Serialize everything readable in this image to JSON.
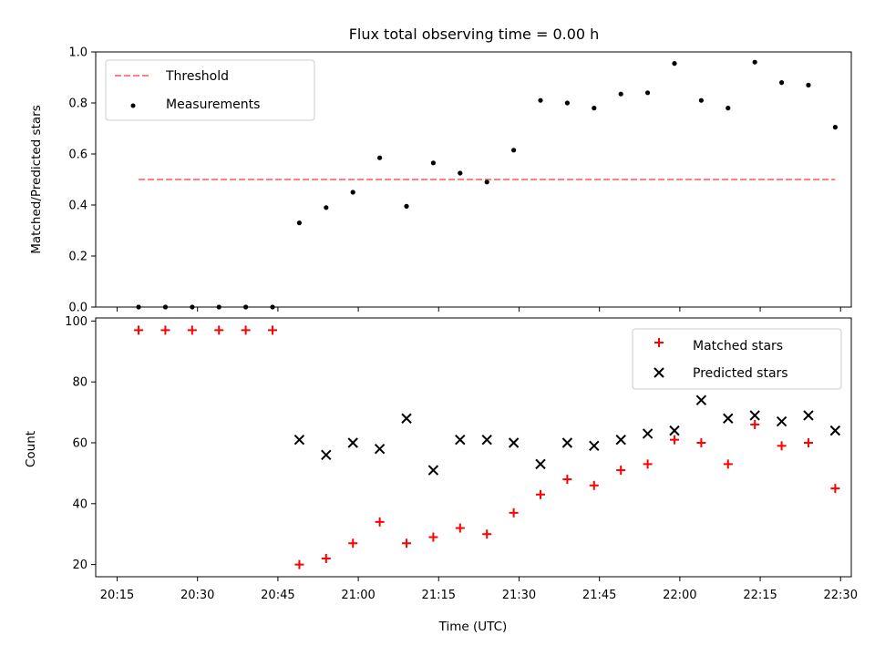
{
  "chart_data": [
    {
      "type": "scatter",
      "title": "Flux total observing time = 0.00 h",
      "xlabel": "",
      "ylabel": "Matched/Predicted stars",
      "ylim": [
        0,
        1
      ],
      "yticks": [
        "0.0",
        "0.2",
        "0.4",
        "0.6",
        "0.8",
        "1.0"
      ],
      "legend_position": "top-left",
      "threshold": {
        "name": "Threshold",
        "value": 0.5,
        "x_start": "20:19",
        "x_end": "22:29",
        "color": "#ff8080",
        "style": "dashed"
      },
      "series": [
        {
          "name": "Measurements",
          "color": "#000000",
          "marker": "dot",
          "points": [
            {
              "x": "20:19",
              "y": 0.0
            },
            {
              "x": "20:24",
              "y": 0.0
            },
            {
              "x": "20:29",
              "y": 0.0
            },
            {
              "x": "20:34",
              "y": 0.0
            },
            {
              "x": "20:39",
              "y": 0.0
            },
            {
              "x": "20:44",
              "y": 0.0
            },
            {
              "x": "20:49",
              "y": 0.33
            },
            {
              "x": "20:54",
              "y": 0.39
            },
            {
              "x": "20:59",
              "y": 0.45
            },
            {
              "x": "21:04",
              "y": 0.585
            },
            {
              "x": "21:09",
              "y": 0.395
            },
            {
              "x": "21:14",
              "y": 0.565
            },
            {
              "x": "21:19",
              "y": 0.525
            },
            {
              "x": "21:24",
              "y": 0.49
            },
            {
              "x": "21:29",
              "y": 0.615
            },
            {
              "x": "21:34",
              "y": 0.81
            },
            {
              "x": "21:39",
              "y": 0.8
            },
            {
              "x": "21:44",
              "y": 0.78
            },
            {
              "x": "21:49",
              "y": 0.835
            },
            {
              "x": "21:54",
              "y": 0.84
            },
            {
              "x": "21:59",
              "y": 0.955
            },
            {
              "x": "22:04",
              "y": 0.81
            },
            {
              "x": "22:09",
              "y": 0.78
            },
            {
              "x": "22:14",
              "y": 0.96
            },
            {
              "x": "22:19",
              "y": 0.88
            },
            {
              "x": "22:24",
              "y": 0.87
            },
            {
              "x": "22:29",
              "y": 0.705
            }
          ]
        }
      ]
    },
    {
      "type": "scatter",
      "title": "",
      "xlabel": "Time (UTC)",
      "ylabel": "Count",
      "ylim": [
        16,
        101
      ],
      "yticks": [
        "20",
        "40",
        "60",
        "80",
        "100"
      ],
      "xlim": [
        "20:11",
        "22:32"
      ],
      "xticks": [
        "20:15",
        "20:30",
        "20:45",
        "21:00",
        "21:15",
        "21:30",
        "21:45",
        "22:00",
        "22:15",
        "22:30"
      ],
      "legend_position": "top-right",
      "series": [
        {
          "name": "Matched stars",
          "color": "#ff0000",
          "marker": "plus",
          "points": [
            {
              "x": "20:19",
              "y": 97
            },
            {
              "x": "20:24",
              "y": 97
            },
            {
              "x": "20:29",
              "y": 97
            },
            {
              "x": "20:34",
              "y": 97
            },
            {
              "x": "20:39",
              "y": 97
            },
            {
              "x": "20:44",
              "y": 97
            },
            {
              "x": "20:49",
              "y": 20
            },
            {
              "x": "20:54",
              "y": 22
            },
            {
              "x": "20:59",
              "y": 27
            },
            {
              "x": "21:04",
              "y": 34
            },
            {
              "x": "21:09",
              "y": 27
            },
            {
              "x": "21:14",
              "y": 29
            },
            {
              "x": "21:19",
              "y": 32
            },
            {
              "x": "21:24",
              "y": 30
            },
            {
              "x": "21:29",
              "y": 37
            },
            {
              "x": "21:34",
              "y": 43
            },
            {
              "x": "21:39",
              "y": 48
            },
            {
              "x": "21:44",
              "y": 46
            },
            {
              "x": "21:49",
              "y": 51
            },
            {
              "x": "21:54",
              "y": 53
            },
            {
              "x": "21:59",
              "y": 61
            },
            {
              "x": "22:04",
              "y": 60
            },
            {
              "x": "22:09",
              "y": 53
            },
            {
              "x": "22:14",
              "y": 66
            },
            {
              "x": "22:19",
              "y": 59
            },
            {
              "x": "22:24",
              "y": 60
            },
            {
              "x": "22:29",
              "y": 45
            }
          ]
        },
        {
          "name": "Predicted stars",
          "color": "#000000",
          "marker": "x",
          "points": [
            {
              "x": "20:49",
              "y": 61
            },
            {
              "x": "20:54",
              "y": 56
            },
            {
              "x": "20:59",
              "y": 60
            },
            {
              "x": "21:04",
              "y": 58
            },
            {
              "x": "21:09",
              "y": 68
            },
            {
              "x": "21:14",
              "y": 51
            },
            {
              "x": "21:19",
              "y": 61
            },
            {
              "x": "21:24",
              "y": 61
            },
            {
              "x": "21:29",
              "y": 60
            },
            {
              "x": "21:34",
              "y": 53
            },
            {
              "x": "21:39",
              "y": 60
            },
            {
              "x": "21:44",
              "y": 59
            },
            {
              "x": "21:49",
              "y": 61
            },
            {
              "x": "21:54",
              "y": 63
            },
            {
              "x": "21:59",
              "y": 64
            },
            {
              "x": "22:04",
              "y": 74
            },
            {
              "x": "22:09",
              "y": 68
            },
            {
              "x": "22:14",
              "y": 69
            },
            {
              "x": "22:19",
              "y": 67
            },
            {
              "x": "22:24",
              "y": 69
            },
            {
              "x": "22:29",
              "y": 64
            }
          ]
        }
      ]
    }
  ]
}
